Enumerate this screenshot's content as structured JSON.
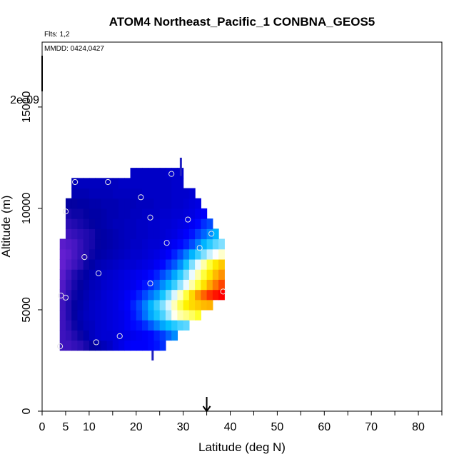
{
  "chart_data": {
    "type": "heatmap",
    "title": "ATOM4 Northeast_Pacific_1 CONBNA_GEOS5",
    "subtitle_flights": "Flts: 1,2",
    "subtitle_dates": "MMDD: 0424,0427",
    "xlabel": "Latitude (deg N)",
    "ylabel": "Altitude (m)",
    "xlim": [
      0,
      85
    ],
    "ylim": [
      0,
      18200
    ],
    "x_ticks": [
      0,
      5,
      10,
      20,
      30,
      40,
      50,
      60,
      70,
      80
    ],
    "x_tick_labels": [
      "0",
      "5",
      "10",
      "20",
      "30",
      "40",
      "50",
      "60",
      "70",
      "80"
    ],
    "y_ticks": [
      0,
      5000,
      10000,
      15000
    ],
    "y_tick_labels": [
      "0",
      "5000",
      "10000",
      "15000"
    ],
    "colorbar_label": "2e-09",
    "marker_latitude": 35,
    "colorscale": [
      "#8a2be2",
      "#0000a0",
      "#0000ff",
      "#00bfff",
      "#ffffff",
      "#ffff00",
      "#ff8c00",
      "#ff0000"
    ],
    "value_range": [
      0,
      1
    ],
    "lat_step": 1.25,
    "alt_step": 500,
    "layers": [
      {
        "alt": 3000,
        "lat_from": 3.75,
        "lat_to": 26.25,
        "values": [
          0.08,
          0.08,
          0.09,
          0.1,
          0.12,
          0.14,
          0.16,
          0.18,
          0.2,
          0.23,
          0.25,
          0.27,
          0.28,
          0.28,
          0.28,
          0.29,
          0.3,
          0.32
        ]
      },
      {
        "alt": 3500,
        "lat_from": 3.75,
        "lat_to": 28.75,
        "values": [
          0.08,
          0.09,
          0.11,
          0.13,
          0.16,
          0.19,
          0.21,
          0.22,
          0.22,
          0.23,
          0.24,
          0.25,
          0.26,
          0.27,
          0.28,
          0.29,
          0.31,
          0.33,
          0.36,
          0.39
        ]
      },
      {
        "alt": 4000,
        "lat_from": 3.75,
        "lat_to": 31.25,
        "values": [
          0.08,
          0.1,
          0.13,
          0.16,
          0.18,
          0.19,
          0.21,
          0.22,
          0.23,
          0.24,
          0.25,
          0.27,
          0.29,
          0.3,
          0.32,
          0.35,
          0.38,
          0.41,
          0.43,
          0.45,
          0.47,
          0.48
        ]
      },
      {
        "alt": 4500,
        "lat_from": 3.75,
        "lat_to": 33.75,
        "values": [
          0.08,
          0.11,
          0.14,
          0.17,
          0.19,
          0.2,
          0.21,
          0.22,
          0.23,
          0.24,
          0.25,
          0.27,
          0.3,
          0.33,
          0.37,
          0.41,
          0.44,
          0.47,
          0.52,
          0.58,
          0.62,
          0.64,
          0.66,
          0.69
        ]
      },
      {
        "alt": 5000,
        "lat_from": 3.75,
        "lat_to": 36.25,
        "values": [
          0.08,
          0.11,
          0.14,
          0.16,
          0.18,
          0.2,
          0.21,
          0.22,
          0.23,
          0.24,
          0.26,
          0.28,
          0.31,
          0.34,
          0.38,
          0.42,
          0.46,
          0.5,
          0.55,
          0.61,
          0.67,
          0.73,
          0.76,
          0.78,
          0.8,
          0.81
        ]
      },
      {
        "alt": 5500,
        "lat_from": 3.75,
        "lat_to": 38.75,
        "values": [
          0.07,
          0.1,
          0.13,
          0.15,
          0.17,
          0.19,
          0.2,
          0.22,
          0.23,
          0.24,
          0.25,
          0.27,
          0.29,
          0.31,
          0.34,
          0.37,
          0.4,
          0.44,
          0.49,
          0.55,
          0.61,
          0.68,
          0.76,
          0.84,
          0.9,
          0.95,
          0.98,
          1.0
        ]
      },
      {
        "alt": 6000,
        "lat_from": 3.75,
        "lat_to": 38.75,
        "values": [
          0.06,
          0.09,
          0.12,
          0.14,
          0.16,
          0.18,
          0.19,
          0.21,
          0.22,
          0.23,
          0.24,
          0.25,
          0.26,
          0.28,
          0.3,
          0.32,
          0.35,
          0.39,
          0.42,
          0.46,
          0.51,
          0.56,
          0.62,
          0.68,
          0.75,
          0.82,
          0.88,
          0.93
        ]
      },
      {
        "alt": 6500,
        "lat_from": 3.75,
        "lat_to": 38.75,
        "values": [
          0.05,
          0.08,
          0.11,
          0.13,
          0.15,
          0.17,
          0.19,
          0.2,
          0.21,
          0.22,
          0.23,
          0.24,
          0.25,
          0.26,
          0.27,
          0.29,
          0.31,
          0.34,
          0.37,
          0.41,
          0.45,
          0.5,
          0.56,
          0.62,
          0.68,
          0.74,
          0.8,
          0.85
        ]
      },
      {
        "alt": 7000,
        "lat_from": 3.75,
        "lat_to": 38.75,
        "values": [
          0.04,
          0.06,
          0.08,
          0.1,
          0.13,
          0.15,
          0.17,
          0.18,
          0.19,
          0.2,
          0.21,
          0.22,
          0.22,
          0.23,
          0.24,
          0.25,
          0.27,
          0.29,
          0.32,
          0.35,
          0.39,
          0.44,
          0.5,
          0.56,
          0.62,
          0.68,
          0.74,
          0.78
        ]
      },
      {
        "alt": 7500,
        "lat_from": 3.75,
        "lat_to": 38.75,
        "values": [
          0.04,
          0.05,
          0.07,
          0.09,
          0.11,
          0.13,
          0.15,
          0.16,
          0.17,
          0.18,
          0.19,
          0.2,
          0.21,
          0.21,
          0.22,
          0.23,
          0.24,
          0.26,
          0.28,
          0.31,
          0.34,
          0.38,
          0.42,
          0.46,
          0.5,
          0.54,
          0.57,
          0.6
        ]
      },
      {
        "alt": 8000,
        "lat_from": 3.75,
        "lat_to": 38.75,
        "values": [
          0.05,
          0.06,
          0.07,
          0.09,
          0.11,
          0.12,
          0.14,
          0.15,
          0.16,
          0.17,
          0.18,
          0.19,
          0.2,
          0.2,
          0.21,
          0.22,
          0.22,
          0.23,
          0.25,
          0.27,
          0.29,
          0.31,
          0.34,
          0.38,
          0.42,
          0.45,
          0.48,
          0.5
        ]
      },
      {
        "alt": 8500,
        "lat_from": 5,
        "lat_to": 37.5,
        "values": [
          0.08,
          0.09,
          0.1,
          0.11,
          0.12,
          0.14,
          0.15,
          0.16,
          0.17,
          0.18,
          0.19,
          0.19,
          0.2,
          0.2,
          0.21,
          0.21,
          0.22,
          0.23,
          0.24,
          0.26,
          0.28,
          0.3,
          0.33,
          0.36,
          0.39,
          0.42
        ]
      },
      {
        "alt": 9000,
        "lat_from": 5,
        "lat_to": 36.25,
        "values": [
          0.1,
          0.11,
          0.12,
          0.13,
          0.14,
          0.15,
          0.16,
          0.17,
          0.18,
          0.18,
          0.19,
          0.19,
          0.2,
          0.2,
          0.21,
          0.21,
          0.22,
          0.22,
          0.23,
          0.24,
          0.25,
          0.27,
          0.29,
          0.32,
          0.34
        ]
      },
      {
        "alt": 9500,
        "lat_from": 5,
        "lat_to": 35,
        "values": [
          0.12,
          0.13,
          0.13,
          0.14,
          0.15,
          0.15,
          0.16,
          0.17,
          0.17,
          0.18,
          0.18,
          0.19,
          0.19,
          0.2,
          0.2,
          0.2,
          0.21,
          0.21,
          0.22,
          0.22,
          0.23,
          0.24,
          0.26,
          0.28
        ]
      },
      {
        "alt": 10000,
        "lat_from": 5,
        "lat_to": 33.75,
        "values": [
          0.14,
          0.14,
          0.15,
          0.15,
          0.16,
          0.16,
          0.17,
          0.17,
          0.17,
          0.18,
          0.18,
          0.18,
          0.19,
          0.19,
          0.19,
          0.2,
          0.2,
          0.2,
          0.21,
          0.21,
          0.22,
          0.23,
          0.24
        ]
      },
      {
        "alt": 10500,
        "lat_from": 6.25,
        "lat_to": 32.5,
        "values": [
          0.17,
          0.17,
          0.17,
          0.18,
          0.18,
          0.18,
          0.18,
          0.19,
          0.19,
          0.19,
          0.19,
          0.19,
          0.2,
          0.2,
          0.2,
          0.2,
          0.2,
          0.21,
          0.21,
          0.21,
          0.22
        ]
      },
      {
        "alt": 11000,
        "lat_from": 6.25,
        "lat_to": 30,
        "values": [
          0.18,
          0.19,
          0.19,
          0.19,
          0.19,
          0.19,
          0.19,
          0.19,
          0.2,
          0.2,
          0.2,
          0.2,
          0.2,
          0.2,
          0.2,
          0.2,
          0.2,
          0.21,
          0.21
        ]
      },
      {
        "alt": 11500,
        "lat_from": 18.75,
        "lat_to": 30,
        "values": [
          0.2,
          0.2,
          0.2,
          0.2,
          0.2,
          0.2,
          0.21,
          0.21,
          0.21
        ]
      }
    ],
    "spikes": [
      {
        "lat": 29.5,
        "alt_from": 11600,
        "alt_to": 12500
      },
      {
        "lat": 23.5,
        "alt_from": 2500,
        "alt_to": 3000
      }
    ],
    "observations": [
      {
        "lat": 3.8,
        "alt": 3200
      },
      {
        "lat": 11.5,
        "alt": 3400
      },
      {
        "lat": 16.5,
        "alt": 3700
      },
      {
        "lat": 4,
        "alt": 5700
      },
      {
        "lat": 5,
        "alt": 5600
      },
      {
        "lat": 38.5,
        "alt": 5900
      },
      {
        "lat": 23,
        "alt": 6300
      },
      {
        "lat": 12,
        "alt": 6800
      },
      {
        "lat": 9,
        "alt": 7600
      },
      {
        "lat": 33.5,
        "alt": 8050
      },
      {
        "lat": 26.5,
        "alt": 8300
      },
      {
        "lat": 36,
        "alt": 8750
      },
      {
        "lat": 23,
        "alt": 9550
      },
      {
        "lat": 31,
        "alt": 9450
      },
      {
        "lat": 5,
        "alt": 9850
      },
      {
        "lat": 21,
        "alt": 10550
      },
      {
        "lat": 7,
        "alt": 11300
      },
      {
        "lat": 14,
        "alt": 11300
      },
      {
        "lat": 27.5,
        "alt": 11700
      }
    ]
  }
}
